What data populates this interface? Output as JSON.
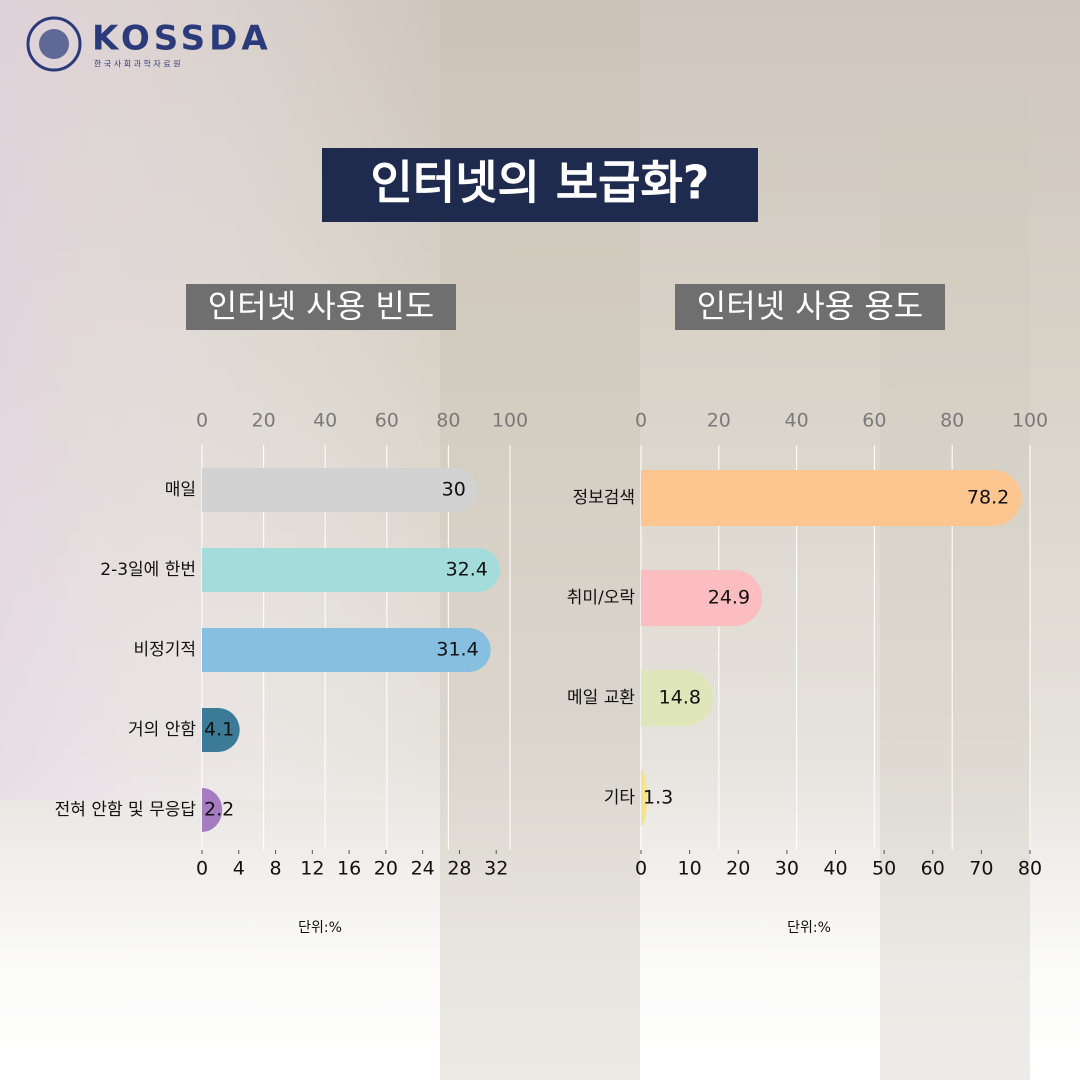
{
  "header": {
    "logo": "KOSSDA",
    "logo_sub": "한 국 사 회 과 학 자 료 원"
  },
  "title": "인터넷의 보급화?",
  "chart_data": [
    {
      "type": "hbar",
      "title": "인터넷 사용 빈도",
      "categories": [
        "매일",
        "2-3일에 한번",
        "비정기적",
        "거의 안함",
        "전혀 안함 및 무응답"
      ],
      "values": [
        30,
        32.4,
        31.4,
        4.1,
        2.2
      ],
      "colors": [
        "#d2d2d2",
        "#a4dcdc",
        "#86bfe0",
        "#3b7b97",
        "#a47cbf"
      ],
      "xlim": [
        0,
        33.5
      ],
      "xticks": [
        0,
        4,
        8,
        12,
        16,
        20,
        24,
        28,
        32
      ],
      "x2lim": [
        0,
        100
      ],
      "x2ticks": [
        0,
        20,
        40,
        60,
        80,
        100
      ],
      "grid": true,
      "note": "단위:%"
    },
    {
      "type": "hbar",
      "title": "인터넷 사용 용도",
      "categories": [
        "정보검색",
        "취미/오락",
        "메일 교환",
        "기타"
      ],
      "values": [
        78.2,
        24.9,
        14.8,
        1.3
      ],
      "colors": [
        "#fdc590",
        "#fbbdbf",
        "#dfe6b9",
        "#f4e48c"
      ],
      "xlim": [
        0,
        80
      ],
      "xticks": [
        0,
        10,
        20,
        30,
        40,
        50,
        60,
        70,
        80
      ],
      "x2lim": [
        0,
        100
      ],
      "x2ticks": [
        0,
        20,
        40,
        60,
        80,
        100
      ],
      "grid": true,
      "note": "단위:%"
    }
  ]
}
